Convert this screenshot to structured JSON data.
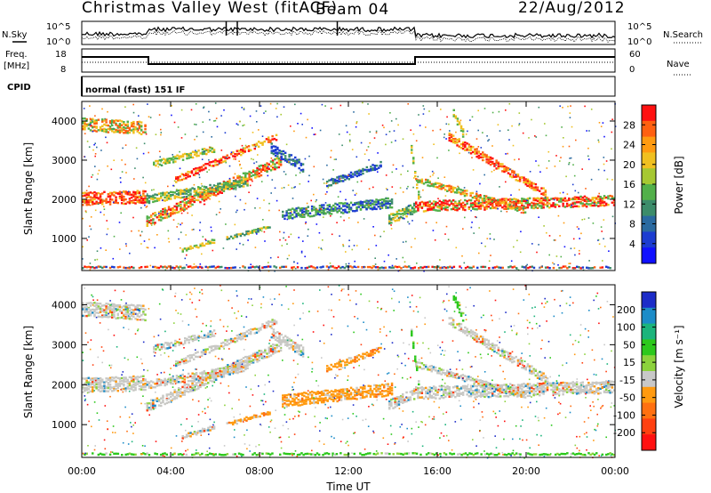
{
  "header": {
    "title": "Christmas Valley West (fitACF)",
    "beam": "Beam 04",
    "date": "22/Aug/2012"
  },
  "sky_panel": {
    "left_label": "N.Sky",
    "right_label": "N.Search",
    "ticks_left": [
      "10^5",
      "10^0"
    ],
    "ticks_right": [
      "10^5",
      "10^0"
    ]
  },
  "freq_panel": {
    "left_label_1": "Freq.",
    "left_label_2": "[MHz]",
    "right_label": "Nave",
    "ticks_left": [
      "18",
      "8"
    ],
    "ticks_right": [
      "60",
      "0"
    ]
  },
  "cpid_panel": {
    "label": "CPID",
    "value": "normal (fast) 151 IF"
  },
  "chart_data": [
    {
      "type": "heatmap",
      "name": "Power",
      "ylabel": "Slant Range [km]",
      "yticks": [
        1000,
        2000,
        3000,
        4000
      ],
      "ylim": [
        180,
        4500
      ],
      "colorbar": {
        "label": "Power [dB]",
        "ticks": [
          "28",
          "24",
          "20",
          "16",
          "12",
          "8",
          "4"
        ],
        "colors": [
          "#ff1010",
          "#ff6010",
          "#ff9a10",
          "#f0c020",
          "#a6c832",
          "#52b04a",
          "#3c8c6a",
          "#2a6aa0",
          "#1c3cd0",
          "#1010ff"
        ]
      }
    },
    {
      "type": "heatmap",
      "name": "Velocity",
      "ylabel": "Slant Range [km]",
      "yticks": [
        1000,
        2000,
        3000,
        4000
      ],
      "ylim": [
        180,
        4500
      ],
      "colorbar": {
        "label": "Velocity [m s⁻¹]",
        "ticks": [
          "200",
          "100",
          "50",
          "15",
          "-15",
          "-50",
          "-100",
          "-200"
        ],
        "colors": [
          "#1c2cc8",
          "#1c8cc8",
          "#1cb47c",
          "#2cc81c",
          "#8cd23c",
          "#c8c8c8",
          "#ff9a10",
          "#ff7010",
          "#ff4010",
          "#ff1010"
        ]
      }
    }
  ],
  "xaxis": {
    "label": "Time UT",
    "ticks": [
      "00:00",
      "04:00",
      "08:00",
      "12:00",
      "16:00",
      "20:00",
      "00:00"
    ],
    "range_hours": [
      0,
      24
    ]
  }
}
